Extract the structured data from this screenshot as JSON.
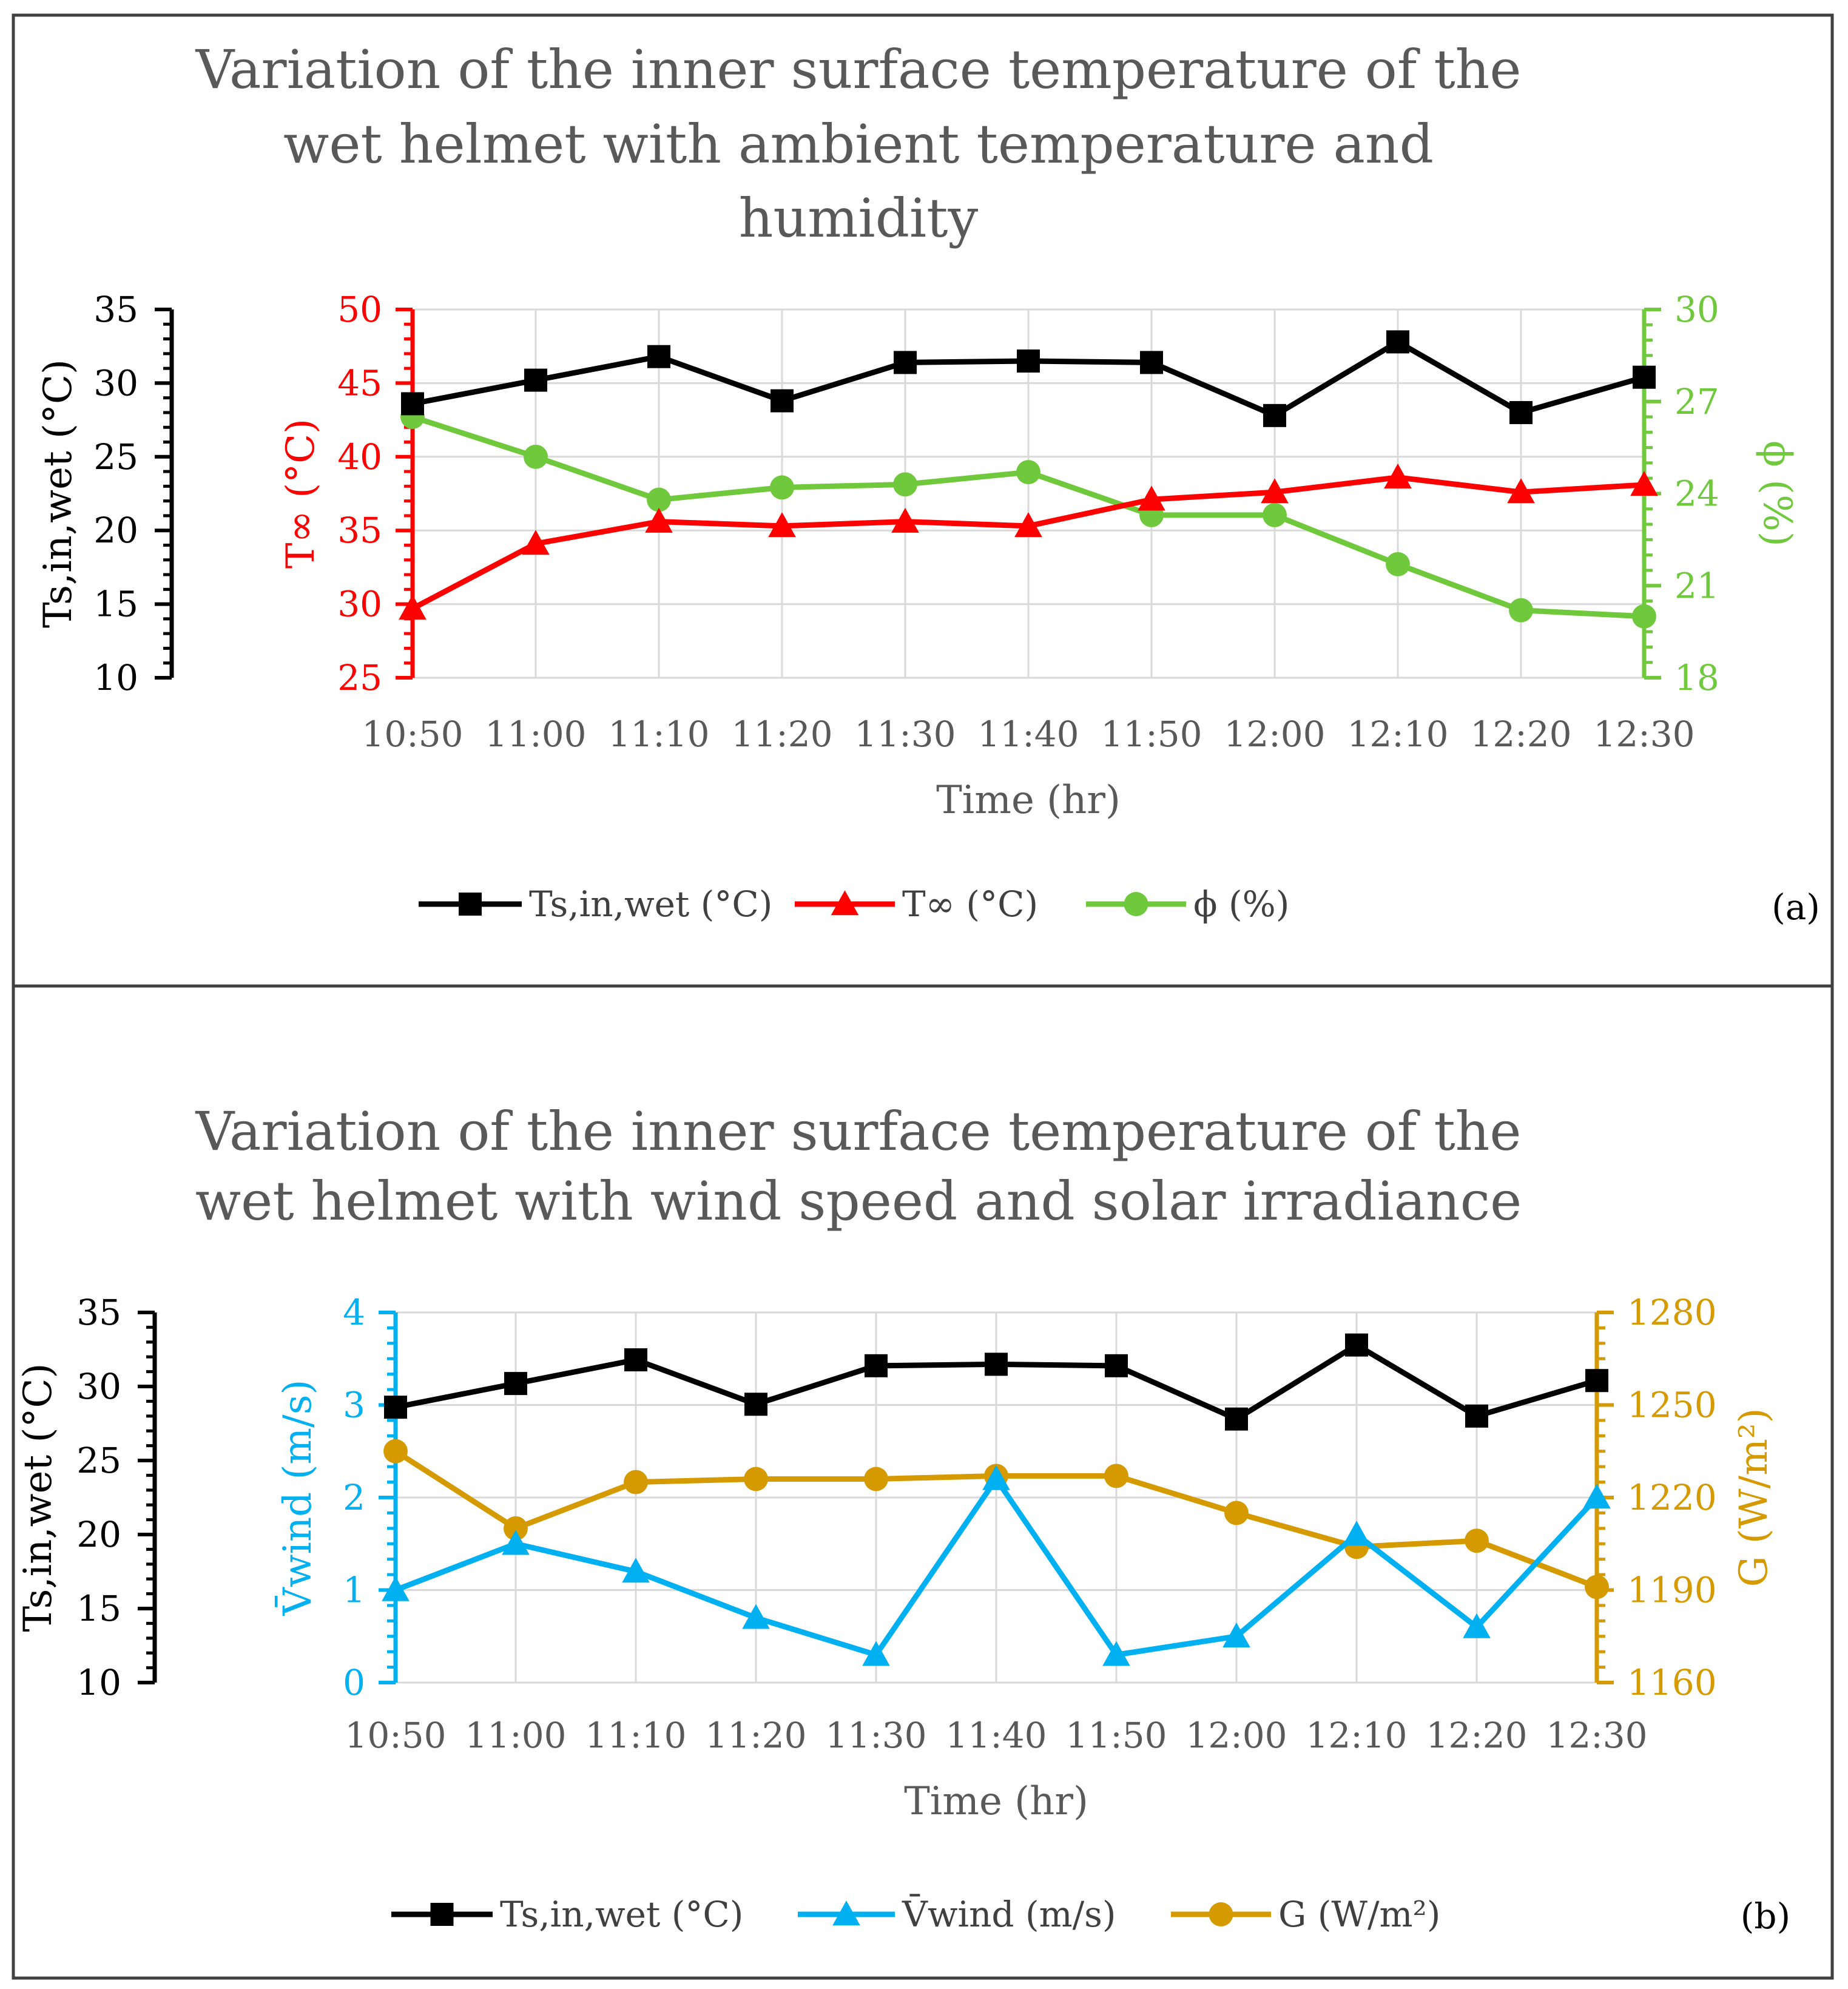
{
  "colors": {
    "black": "#000000",
    "red": "#ff0000",
    "green": "#70c83c",
    "blue": "#00b0f0",
    "gold": "#d49a00",
    "grid": "#d9d9d9",
    "border": "#404040"
  },
  "chart_data": [
    {
      "type": "line",
      "panel_label": "(a)",
      "title_lines": [
        "Variation of the inner surface temperature of the",
        "wet helmet with ambient temperature and",
        "humidity"
      ],
      "xlabel": "Time (hr)",
      "categories": [
        "10:50",
        "11:00",
        "11:10",
        "11:20",
        "11:30",
        "11:40",
        "11:50",
        "12:00",
        "12:10",
        "12:20",
        "12:30"
      ],
      "axes": [
        {
          "id": "ts",
          "label": "Ts,in,wet (°C)",
          "range": [
            10,
            35
          ],
          "ticks": [
            "10",
            "15",
            "20",
            "25",
            "30",
            "35"
          ],
          "color": "#000000"
        },
        {
          "id": "tinf",
          "label": "T∞ (°C)",
          "range": [
            25,
            50
          ],
          "ticks": [
            "25",
            "30",
            "35",
            "40",
            "45",
            "50"
          ],
          "color": "#ff0000"
        },
        {
          "id": "phi",
          "label": "ϕ (%)",
          "range": [
            18,
            30
          ],
          "ticks": [
            "18",
            "21",
            "24",
            "27",
            "30"
          ],
          "color": "#70c83c"
        }
      ],
      "series": [
        {
          "name": "Ts,in,wet (°C)",
          "axis": "ts",
          "marker": "square",
          "color": "#000000",
          "values": [
            28.6,
            30.2,
            31.8,
            28.8,
            31.4,
            31.5,
            31.4,
            27.8,
            32.8,
            28.0,
            30.4
          ]
        },
        {
          "name": "T∞ (°C)",
          "axis": "tinf",
          "marker": "triangle",
          "color": "#ff0000",
          "values": [
            29.7,
            34.1,
            35.6,
            35.3,
            35.6,
            35.3,
            37.1,
            37.6,
            38.6,
            37.6,
            38.1
          ]
        },
        {
          "name": "ϕ (%)",
          "axis": "phi",
          "marker": "circle",
          "color": "#70c83c",
          "values": [
            26.5,
            25.2,
            23.8,
            24.2,
            24.3,
            24.7,
            23.3,
            23.3,
            21.7,
            20.2,
            20.0
          ]
        }
      ]
    },
    {
      "type": "line",
      "panel_label": "(b)",
      "title_lines": [
        "Variation of the inner surface temperature of the",
        "wet helmet with wind speed and solar irradiance"
      ],
      "xlabel": "Time (hr)",
      "categories": [
        "10:50",
        "11:00",
        "11:10",
        "11:20",
        "11:30",
        "11:40",
        "11:50",
        "12:00",
        "12:10",
        "12:20",
        "12:30"
      ],
      "axes": [
        {
          "id": "ts",
          "label": "Ts,in,wet (°C)",
          "range": [
            10,
            35
          ],
          "ticks": [
            "10",
            "15",
            "20",
            "25",
            "30",
            "35"
          ],
          "color": "#000000"
        },
        {
          "id": "wind",
          "label": "V̄wind (m/s)",
          "range": [
            0,
            4
          ],
          "ticks": [
            "0",
            "1",
            "2",
            "3",
            "4"
          ],
          "color": "#00b0f0"
        },
        {
          "id": "g",
          "label": "G (W/m²)",
          "range": [
            1160,
            1280
          ],
          "ticks": [
            "1160",
            "1190",
            "1220",
            "1250",
            "1280"
          ],
          "color": "#d49a00"
        }
      ],
      "series": [
        {
          "name": "Ts,in,wet (°C)",
          "axis": "ts",
          "marker": "square",
          "color": "#000000",
          "values": [
            28.6,
            30.2,
            31.8,
            28.8,
            31.4,
            31.5,
            31.4,
            27.8,
            32.8,
            28.0,
            30.4
          ]
        },
        {
          "name": "V̄wind (m/s)",
          "axis": "wind",
          "marker": "triangle",
          "color": "#00b0f0",
          "values": [
            1.0,
            1.5,
            1.2,
            0.7,
            0.3,
            2.2,
            0.3,
            0.5,
            1.6,
            0.6,
            2.0
          ]
        },
        {
          "name": "G (W/m²)",
          "axis": "g",
          "marker": "circle",
          "color": "#d49a00",
          "values": [
            1235,
            1210,
            1225,
            1226,
            1226,
            1227,
            1227,
            1215,
            1204,
            1206,
            1191
          ]
        }
      ]
    }
  ]
}
